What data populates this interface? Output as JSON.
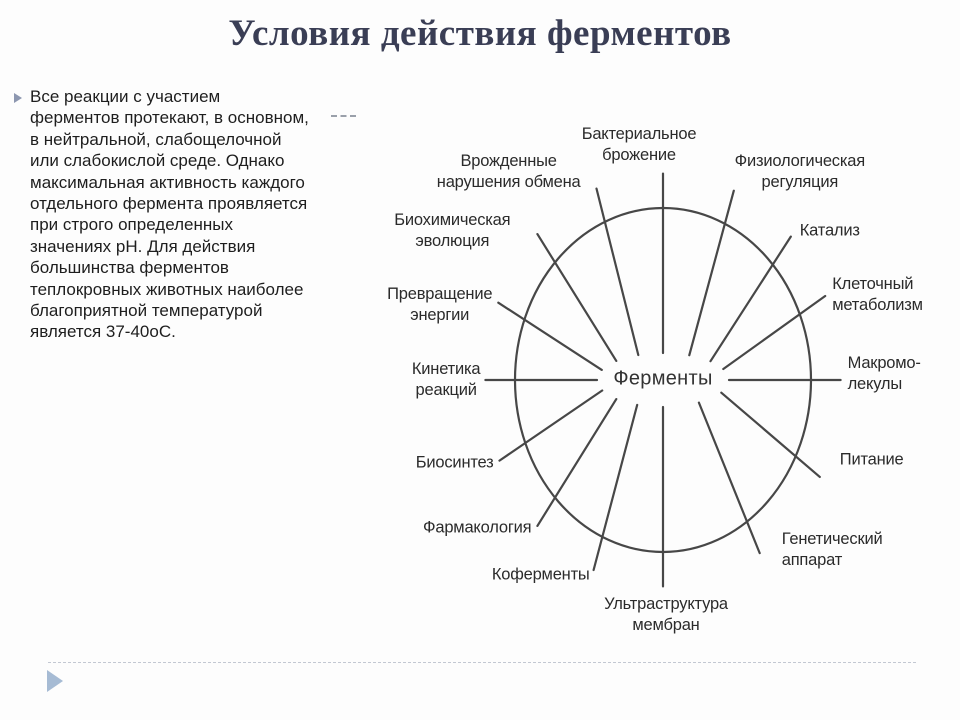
{
  "slide": {
    "title": "Условия действия ферментов",
    "body_lines": [
      "Все реакции с участием",
      "ферментов протекают, в основном,",
      "в нейтральной, слабощелочной",
      "или слабокислой среде. Однако",
      "максимальная активность каждого",
      "отдельного фермента проявляется",
      "при строго определенных",
      "значениях pH. Для действия",
      "большинства ферментов",
      "теплокровных животных наиболее",
      "благоприятной температурой",
      "является 37-40оС."
    ],
    "bullet_icon": "triangle-right-icon",
    "nav_arrow_icon": "triangle-right-icon"
  },
  "colors": {
    "title_text": "#3a3e55",
    "body_text": "#1e1e1e",
    "diagram_ink": "#474747",
    "label_text": "#2b2b2b",
    "bullet_marker": "#8d97b0",
    "nav_arrow": "#a6bbd4",
    "footer_dash": "#c3c8d2"
  },
  "diagram": {
    "center_label": "Ферменты",
    "nodes": [
      {
        "id": "bacterial-fermentation",
        "label": [
          "Бактериальное",
          "брожение"
        ],
        "angle": 90
      },
      {
        "id": "physiological-regulation",
        "label": [
          "Физиологическая",
          "регуляция"
        ],
        "angle": 66.5
      },
      {
        "id": "catalysis",
        "label": [
          "Катализ"
        ],
        "angle": 44
      },
      {
        "id": "cell-metabolism",
        "label": [
          "Клеточный",
          "метаболизм"
        ],
        "angle": 24
      },
      {
        "id": "macromolecules",
        "label": [
          "Макромо-",
          "лекулы"
        ],
        "angle": 0
      },
      {
        "id": "nutrition",
        "label": [
          "Питание"
        ],
        "angle": -28
      },
      {
        "id": "genetic-apparatus",
        "label": [
          "Генетический",
          "аппарат"
        ],
        "angle": -57
      },
      {
        "id": "membrane-ultrastructure",
        "label": [
          "Ультраструктура",
          "мембран"
        ],
        "angle": -90
      },
      {
        "id": "coenzymes",
        "label": [
          "Коферменты"
        ],
        "angle": -113
      },
      {
        "id": "pharmacology",
        "label": [
          "Фармакология"
        ],
        "angle": -135
      },
      {
        "id": "biosynthesis",
        "label": [
          "Биосинтез"
        ],
        "angle": -157
      },
      {
        "id": "reaction-kinetics",
        "label": [
          "Кинетика",
          "реакций"
        ],
        "angle": 180
      },
      {
        "id": "energy-transformation",
        "label": [
          "Превращение",
          "энергии"
        ],
        "angle": 158
      },
      {
        "id": "biochemical-evolution",
        "label": [
          "Биохимическая",
          "эволюция"
        ],
        "angle": 135
      },
      {
        "id": "inborn-metabolic-disorders",
        "label": [
          "Врожденные",
          "нарушения обмена"
        ],
        "angle": 112
      }
    ]
  }
}
